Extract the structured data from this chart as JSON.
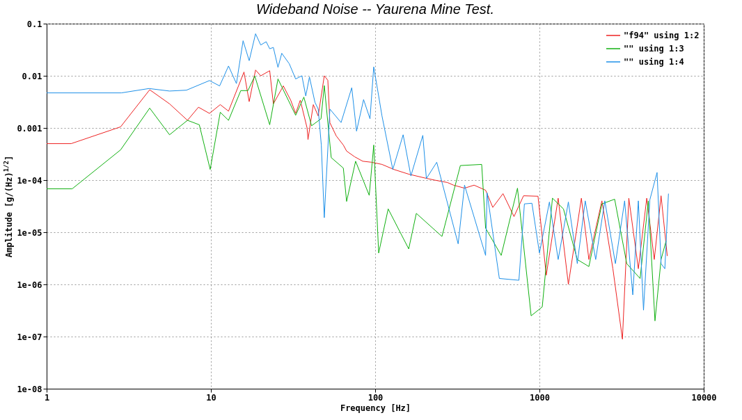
{
  "chart_data": {
    "type": "line",
    "title": "Wideband Noise -- Yaurena Mine Test.",
    "xlabel": "Frequency [Hz]",
    "ylabel": "Amplitude [g/(Hz)$^{1/2}$]",
    "log": "xy",
    "grid": true,
    "legend": "top right",
    "xlim": [
      1,
      10000
    ],
    "xticks": [
      1,
      10,
      100,
      1000,
      10000
    ],
    "ylim": [
      1e-08,
      0.1
    ],
    "yticks": [
      0.1,
      0.01,
      0.001,
      {
        "value": 0.0001,
        "label": "1e-04"
      },
      {
        "value": 1e-05,
        "label": "1e-05"
      },
      {
        "value": 1e-06,
        "label": "1e-06"
      },
      {
        "value": 1e-07,
        "label": "1e-07"
      },
      {
        "value": 1e-08,
        "label": "1e-08"
      }
    ],
    "series": [
      {
        "name": "\"f94\" using 1:2",
        "color": "#ee2222",
        "x": [
          1,
          1.41,
          2.82,
          4.24,
          5.6,
          7.2,
          8.4,
          9.8,
          11.4,
          12.8,
          15.9,
          17.1,
          18.7,
          20.1,
          22.8,
          24,
          27.6,
          30.6,
          32.8,
          35,
          38.5,
          39,
          42,
          45,
          49,
          51.5,
          53,
          58,
          64,
          67,
          75,
          84,
          95,
          110,
          130,
          160,
          200,
          230,
          275,
          300,
          350,
          400,
          470,
          520,
          600,
          700,
          800,
          980,
          1100,
          1300,
          1500,
          1800,
          2000,
          2400,
          2800,
          3200,
          3500,
          4000,
          4500,
          5000,
          5500,
          6000
        ],
        "values": [
          0.0005,
          0.0005,
          0.00105,
          0.0054,
          0.0029,
          0.0014,
          0.0025,
          0.0019,
          0.0028,
          0.0021,
          0.0118,
          0.0032,
          0.0129,
          0.01,
          0.0125,
          0.0029,
          0.0064,
          0.0034,
          0.0019,
          0.0034,
          0.001,
          0.0006,
          0.0028,
          0.0017,
          0.01,
          0.0082,
          0.00126,
          0.0007,
          0.00047,
          0.00036,
          0.00028,
          0.00023,
          0.00022,
          0.0002,
          0.00016,
          0.00013,
          0.00011,
          0.0001,
          9e-05,
          8e-05,
          7e-05,
          8e-05,
          6.4e-05,
          3e-05,
          5.5e-05,
          2e-05,
          5e-05,
          4.9e-05,
          1.5e-06,
          4.5e-05,
          1e-06,
          4.5e-05,
          3e-06,
          4e-05,
          2e-06,
          8.9e-08,
          4.5e-05,
          2e-06,
          4.5e-05,
          3e-06,
          5e-05,
          3.5e-06
        ]
      },
      {
        "name": "\"\" using 1:3",
        "color": "#10b010",
        "x": [
          1,
          1.43,
          2.82,
          4.24,
          5.6,
          7.2,
          8.5,
          9.9,
          11.4,
          12.8,
          15.2,
          16.8,
          18.5,
          22.8,
          25.6,
          32.8,
          36.8,
          41,
          46.8,
          49,
          54,
          64,
          67,
          76,
          92,
          98,
          105,
          120,
          160,
          178,
          255,
          330,
          445,
          470,
          585,
          735,
          890,
          1040,
          1200,
          1400,
          1700,
          2000,
          2400,
          2870,
          3400,
          4100,
          4600,
          5050,
          5500,
          5900
        ],
        "values": [
          6.8e-05,
          6.8e-05,
          0.00038,
          0.0024,
          0.00074,
          0.0014,
          0.00115,
          0.00016,
          0.002,
          0.0014,
          0.0052,
          0.0052,
          0.0099,
          0.00115,
          0.0087,
          0.00175,
          0.0039,
          0.0011,
          0.0015,
          0.0065,
          0.00027,
          0.00017,
          3.9e-05,
          0.00023,
          5.1e-05,
          0.00047,
          4e-06,
          2.8e-05,
          4.8e-06,
          2.3e-05,
          8.3e-06,
          0.00019,
          0.0002,
          1.2e-05,
          3.6e-06,
          7e-05,
          2.5e-07,
          3.7e-07,
          4.5e-05,
          2.8e-05,
          3e-06,
          2.2e-06,
          3.5e-05,
          4.3e-05,
          2.5e-06,
          1.3e-06,
          4e-05,
          2e-07,
          3e-06,
          6.8e-06
        ]
      },
      {
        "name": "\"\" using 1:4",
        "color": "#1e90e8",
        "x": [
          1,
          2.85,
          4.2,
          5.6,
          7.1,
          9.8,
          11.3,
          12.8,
          14.3,
          15.7,
          17.1,
          18.7,
          20.1,
          21.7,
          22.8,
          24,
          25.6,
          27,
          30,
          32.8,
          35.8,
          37.8,
          39.8,
          43,
          45,
          47,
          49,
          53,
          62,
          72,
          77,
          85,
          93,
          98,
          105,
          110,
          128,
          148,
          165,
          195,
          205,
          237,
          320,
          350,
          470,
          480,
          570,
          750,
          810,
          900,
          1000,
          1150,
          1300,
          1500,
          1700,
          1900,
          2200,
          2500,
          2900,
          3300,
          3700,
          4000,
          4300,
          4700,
          5200,
          5500,
          5800,
          6100
        ],
        "values": [
          0.0047,
          0.0047,
          0.0057,
          0.0051,
          0.0053,
          0.0081,
          0.0064,
          0.0154,
          0.0071,
          0.047,
          0.0195,
          0.064,
          0.039,
          0.045,
          0.033,
          0.035,
          0.0145,
          0.027,
          0.017,
          0.0087,
          0.01,
          0.0041,
          0.0095,
          0.0031,
          0.0023,
          0.00047,
          1.9e-05,
          0.0023,
          0.00127,
          0.0059,
          0.00087,
          0.0035,
          0.0015,
          0.0148,
          0.0041,
          0.0017,
          0.00016,
          0.00074,
          0.00012,
          0.00072,
          0.000107,
          0.00022,
          6e-06,
          8e-05,
          3.6e-06,
          5.7e-05,
          1.3e-06,
          1.2e-06,
          3.5e-05,
          3.6e-05,
          4e-06,
          3.8e-05,
          3e-06,
          3.8e-05,
          2.5e-06,
          4e-05,
          3e-06,
          4e-05,
          2.5e-06,
          4e-05,
          6.3e-07,
          4e-05,
          3.2e-07,
          4.2e-05,
          0.00014,
          2.5e-06,
          2e-06,
          5.5e-05
        ]
      }
    ]
  }
}
